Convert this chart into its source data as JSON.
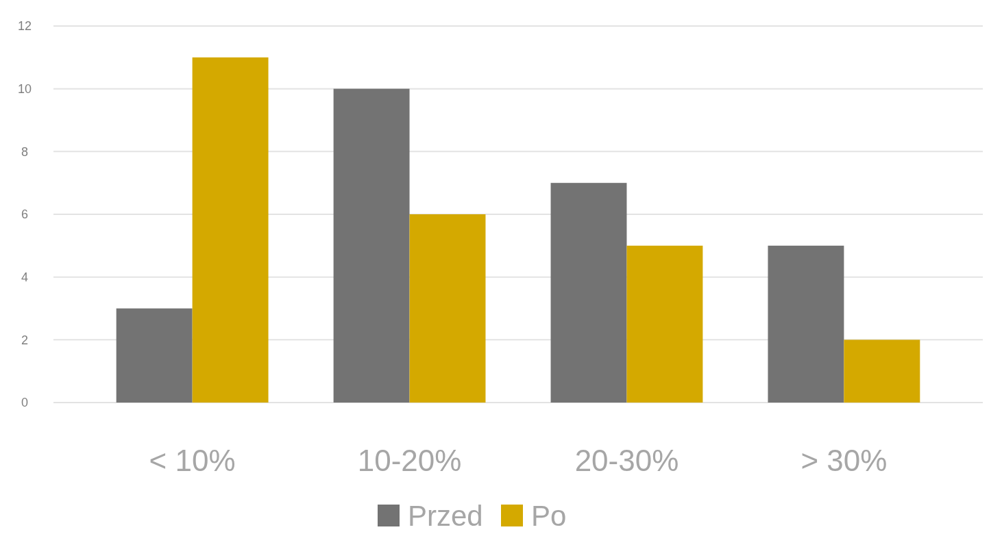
{
  "chart_data": {
    "type": "bar",
    "categories": [
      "< 10%",
      "10-20%",
      "20-30%",
      "> 30%"
    ],
    "series": [
      {
        "name": "Przed",
        "color": "#737373",
        "values": [
          3,
          10,
          7,
          5
        ]
      },
      {
        "name": "Po",
        "color": "#d4a900",
        "values": [
          11,
          6,
          5,
          2
        ]
      }
    ],
    "ylim": [
      0,
      12
    ],
    "yticks": [
      0,
      2,
      4,
      6,
      8,
      10,
      12
    ],
    "grid": "y",
    "legend": "bottom"
  }
}
